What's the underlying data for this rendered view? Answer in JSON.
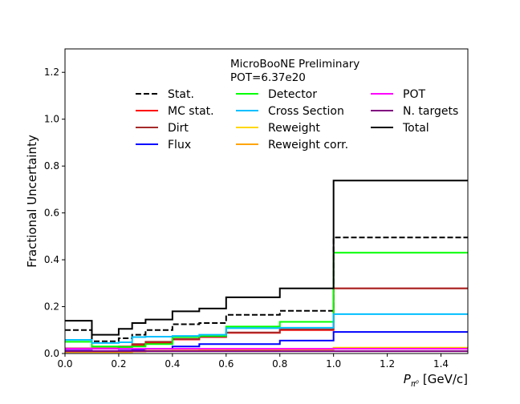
{
  "chart_data": {
    "type": "line",
    "title": "",
    "annotation": [
      "MicroBooNE Preliminary",
      "POT=6.37e20"
    ],
    "ylabel": "Fractional Uncertainty",
    "xlabel": "P_{π⁰} [GeV/c]",
    "xlabel_main": "P",
    "xlabel_sub": "π⁰",
    "xlabel_unit": "[GeV/c]",
    "xlim": [
      0,
      1.5
    ],
    "ylim": [
      0,
      1.3
    ],
    "xticks": [
      "0.0",
      "0.2",
      "0.4",
      "0.6",
      "0.8",
      "1.0",
      "1.2",
      "1.4"
    ],
    "yticks": [
      "0.0",
      "0.2",
      "0.4",
      "0.6",
      "0.8",
      "1.0",
      "1.2"
    ],
    "grid": false,
    "legend_placement": "top-center",
    "bin_edges": [
      0,
      0.1,
      0.2,
      0.25,
      0.3,
      0.4,
      0.5,
      0.6,
      0.8,
      1.0,
      1.5
    ],
    "series": [
      {
        "name": "Stat.",
        "color": "#000000",
        "dash": true,
        "values": [
          0.1,
          0.052,
          0.065,
          0.08,
          0.1,
          0.125,
          0.13,
          0.165,
          0.182,
          0.495
        ]
      },
      {
        "name": "MC stat.",
        "color": "#ff0000",
        "dash": false,
        "values": [
          0.02,
          0.022,
          0.028,
          0.035,
          0.045,
          0.06,
          0.07,
          0.088,
          0.1,
          0.278
        ]
      },
      {
        "name": "Dirt",
        "color": "#a52a2a",
        "dash": false,
        "values": [
          0.022,
          0.022,
          0.03,
          0.04,
          0.05,
          0.062,
          0.072,
          0.09,
          0.103,
          0.278
        ]
      },
      {
        "name": "Flux",
        "color": "#0000ff",
        "dash": false,
        "values": [
          0.012,
          0.01,
          0.012,
          0.015,
          0.02,
          0.03,
          0.04,
          0.04,
          0.055,
          0.092
        ]
      },
      {
        "name": "Detector",
        "color": "#00ff00",
        "dash": false,
        "values": [
          0.05,
          0.03,
          0.028,
          0.03,
          0.04,
          0.07,
          0.075,
          0.115,
          0.135,
          0.43
        ]
      },
      {
        "name": "Cross Section",
        "color": "#00bfff",
        "dash": false,
        "values": [
          0.058,
          0.045,
          0.048,
          0.07,
          0.072,
          0.075,
          0.08,
          0.108,
          0.11,
          0.168
        ]
      },
      {
        "name": "Reweight",
        "color": "#ffd700",
        "dash": false,
        "values": [
          0.008,
          0.008,
          0.008,
          0.01,
          0.012,
          0.013,
          0.015,
          0.018,
          0.02,
          0.025
        ]
      },
      {
        "name": "Reweight corr.",
        "color": "#ffa500",
        "dash": false,
        "values": [
          0.006,
          0.006,
          0.006,
          0.008,
          0.01,
          0.012,
          0.013,
          0.015,
          0.017,
          0.022
        ]
      },
      {
        "name": "POT",
        "color": "#ff00ff",
        "dash": false,
        "values": [
          0.02,
          0.02,
          0.02,
          0.02,
          0.02,
          0.02,
          0.02,
          0.02,
          0.02,
          0.02
        ]
      },
      {
        "name": "N. targets",
        "color": "#800080",
        "dash": false,
        "values": [
          0.01,
          0.01,
          0.01,
          0.01,
          0.01,
          0.01,
          0.01,
          0.01,
          0.01,
          0.01
        ]
      },
      {
        "name": "Total",
        "color": "#000000",
        "dash": false,
        "values": [
          0.14,
          0.08,
          0.105,
          0.13,
          0.145,
          0.18,
          0.192,
          0.24,
          0.278,
          0.738
        ]
      }
    ]
  }
}
